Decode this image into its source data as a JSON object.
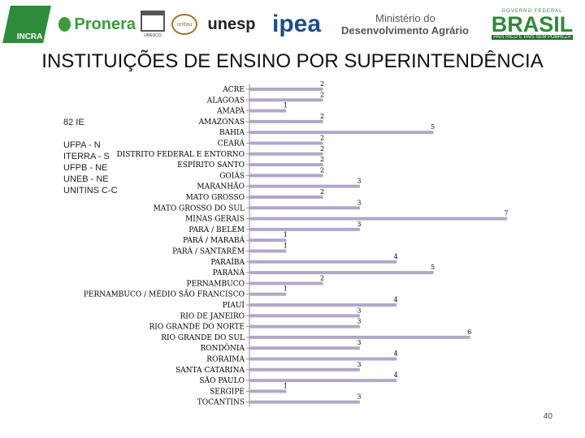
{
  "logos": {
    "incra": "INCRA",
    "pronera": "Pronera",
    "unesco": "UNESCO",
    "unitau": "unitau",
    "unesp": "unesp",
    "ipea": "ipea",
    "mda_line1": "Ministério do",
    "mda_line2": "Desenvolvimento Agrário",
    "brasil_top": "GOVERNO FEDERAL",
    "brasil_name": "BRASIL",
    "brasil_tag": "PAÍS RICO É PAÍS SEM POBREZA"
  },
  "title": "INSTITUIÇÕES DE ENSINO POR SUPERINTENDÊNCIA",
  "note": {
    "head": "82 IE",
    "lines": [
      "UFPA - N",
      "ITERRA - S",
      "UFPB - NE",
      "UNEB - NE",
      "UNITINS C-C"
    ]
  },
  "page_number": "40",
  "chart_data": {
    "type": "bar",
    "orientation": "horizontal",
    "title": "INSTITUIÇÕES DE ENSINO POR SUPERINTENDÊNCIA",
    "xlim": [
      0,
      7
    ],
    "grid": false,
    "legend": "none",
    "bar_color": "#b3a7c8",
    "categories": [
      "ACRE",
      "ALAGOAS",
      "AMAPÁ",
      "AMAZONAS",
      "BAHIA",
      "CEARÁ",
      "DISTRITO FEDERAL E ENTORNO",
      "ESPÍRITO SANTO",
      "GOIÁS",
      "MARANHÃO",
      "MATO GROSSO",
      "MATO GROSSO DO SUL",
      "MINAS GERAIS",
      "PARÁ / BELÉM",
      "PARÁ / MARABÁ",
      "PARÁ / SANTARÉM",
      "PARAÍBA",
      "PARANÁ",
      "PERNAMBUCO",
      "PERNAMBUCO / MÉDIO SÃO FRANCISCO",
      "PIAUÍ",
      "RIO DE JANEIRO",
      "RIO GRANDE DO NORTE",
      "RIO GRANDE DO SUL",
      "RONDÔNIA",
      "RORAIMA",
      "SANTA CATARINA",
      "SÃO PAULO",
      "SERGIPE",
      "TOCANTINS"
    ],
    "values": [
      2,
      2,
      1,
      2,
      5,
      2,
      2,
      2,
      2,
      3,
      2,
      3,
      7,
      3,
      1,
      1,
      4,
      5,
      2,
      1,
      4,
      3,
      3,
      6,
      3,
      4,
      3,
      4,
      1,
      3
    ]
  }
}
